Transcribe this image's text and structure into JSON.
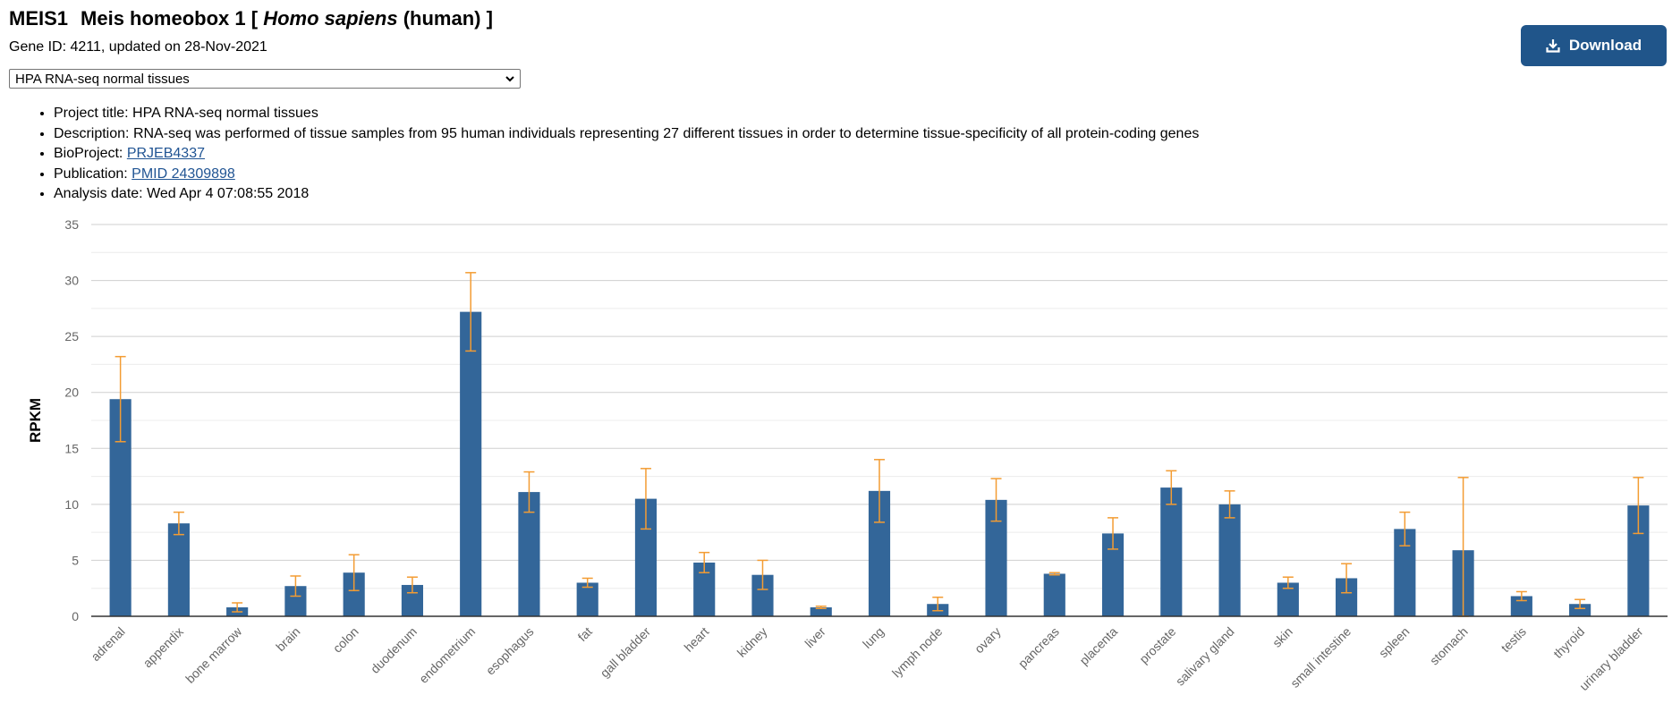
{
  "header": {
    "symbol": "MEIS1",
    "name_prefix": "Meis homeobox 1 [",
    "organism": "Homo sapiens",
    "name_suffix": "(human) ]",
    "subtitle": "Gene ID: 4211, updated on 28-Nov-2021"
  },
  "dataset_select": {
    "selected": "HPA RNA-seq normal tissues"
  },
  "download": {
    "label": "Download"
  },
  "info": {
    "project_label": "Project title:",
    "project_value": "HPA RNA-seq normal tissues",
    "description_label": "Description:",
    "description_value": "RNA-seq was performed of tissue samples from 95 human individuals representing 27 different tissues in order to determine tissue-specificity of all protein-coding genes",
    "bioproject_label": "BioProject:",
    "bioproject_link": "PRJEB4337",
    "publication_label": "Publication:",
    "publication_link": "PMID 24309898",
    "analysis_label": "Analysis date:",
    "analysis_value": "Wed Apr 4 07:08:55 2018"
  },
  "colors": {
    "bar": "#336699",
    "error_bar": "#f39c33",
    "grid": "#d0d0d0",
    "axis": "#333333",
    "button": "#20558a"
  },
  "chart_data": {
    "type": "bar",
    "ylabel": "RPKM",
    "ylim": [
      0,
      35
    ],
    "yticks": [
      0,
      5,
      10,
      15,
      20,
      25,
      30,
      35
    ],
    "grid": true,
    "categories": [
      "adrenal",
      "appendix",
      "bone marrow",
      "brain",
      "colon",
      "duodenum",
      "endometrium",
      "esophagus",
      "fat",
      "gall bladder",
      "heart",
      "kidney",
      "liver",
      "lung",
      "lymph node",
      "ovary",
      "pancreas",
      "placenta",
      "prostate",
      "salivary gland",
      "skin",
      "small intestine",
      "spleen",
      "stomach",
      "testis",
      "thyroid",
      "urinary bladder"
    ],
    "values": [
      19.4,
      8.3,
      0.8,
      2.7,
      3.9,
      2.8,
      27.2,
      11.1,
      3.0,
      10.5,
      4.8,
      3.7,
      0.8,
      11.2,
      1.1,
      10.4,
      3.8,
      7.4,
      11.5,
      10.0,
      3.0,
      3.4,
      7.8,
      5.9,
      1.8,
      1.1,
      9.9
    ],
    "error": [
      3.8,
      1.0,
      0.4,
      0.9,
      1.6,
      0.7,
      3.5,
      1.8,
      0.4,
      2.7,
      0.9,
      1.3,
      0.1,
      2.8,
      0.6,
      1.9,
      0.1,
      1.4,
      1.5,
      1.2,
      0.5,
      1.3,
      1.5,
      6.5,
      0.4,
      0.4,
      2.5
    ]
  }
}
